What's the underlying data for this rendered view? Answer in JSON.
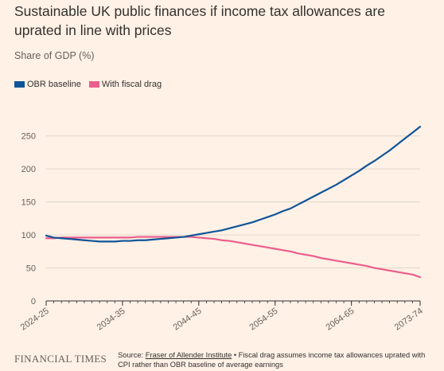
{
  "title": "Sustainable UK public finances if income tax allowances are uprated in line with prices",
  "footer": {
    "brand": "FINANCIAL TIMES",
    "source_prefix": "Source: ",
    "source_link": "Fraser of Allender Institute",
    "source_note": " • Fiscal drag assumes income tax allowances uprated with CPI rather than OBR baseline of average earnings"
  },
  "colors": {
    "baseline": "#0f5499",
    "fiscal_drag": "#eb5e8d",
    "grid": "#e0d6ce",
    "axis_text": "#66605c"
  },
  "chart_data": {
    "type": "line",
    "title": "Sustainable UK public finances if income tax allowances are uprated in line with prices",
    "ylabel": "Share of GDP (%)",
    "xlabel": "",
    "ylim": [
      0,
      275
    ],
    "yticks": [
      0,
      50,
      100,
      150,
      200,
      250
    ],
    "x_start_label_index": 0,
    "x_ticks": [
      "2024-25",
      "2034-35",
      "2044-45",
      "2054-55",
      "2064-65",
      "2073-74"
    ],
    "x_tick_positions": [
      0,
      10,
      20,
      30,
      40,
      49
    ],
    "x_count": 50,
    "legend_position": "top-left",
    "grid": true,
    "series": [
      {
        "name": "OBR baseline",
        "color": "#0f5499",
        "values": [
          99,
          96,
          95,
          94,
          93,
          92,
          91,
          90,
          90,
          90,
          91,
          91,
          92,
          92,
          93,
          94,
          95,
          96,
          97,
          99,
          101,
          103,
          105,
          107,
          110,
          113,
          116,
          119,
          123,
          127,
          131,
          136,
          140,
          146,
          152,
          158,
          164,
          170,
          176,
          183,
          190,
          197,
          205,
          212,
          220,
          228,
          237,
          246,
          255,
          264
        ]
      },
      {
        "name": "With fiscal drag",
        "color": "#eb5e8d",
        "values": [
          95,
          95,
          96,
          96,
          96,
          96,
          96,
          96,
          96,
          96,
          96,
          96,
          97,
          97,
          97,
          97,
          97,
          97,
          97,
          97,
          96,
          95,
          94,
          92,
          91,
          89,
          87,
          85,
          83,
          81,
          79,
          77,
          75,
          72,
          70,
          68,
          65,
          63,
          61,
          59,
          57,
          55,
          53,
          50,
          48,
          46,
          44,
          42,
          40,
          36
        ]
      }
    ]
  }
}
